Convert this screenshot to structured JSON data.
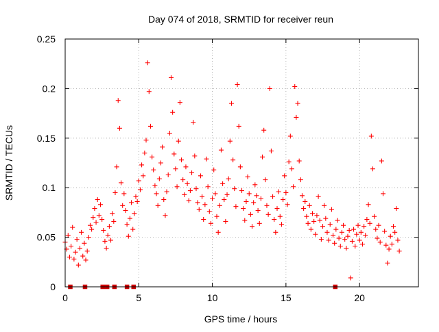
{
  "chart_data": {
    "type": "scatter",
    "title": "Day 074 of 2018, SRMTID for receiver reun",
    "xlabel": "GPS time / hours",
    "ylabel": "SRMTID / TECUs",
    "xlim": [
      0,
      24
    ],
    "ylim": [
      0,
      0.25
    ],
    "xticks": [
      {
        "value": 0,
        "label": "0"
      },
      {
        "value": 5,
        "label": "5"
      },
      {
        "value": 10,
        "label": "10"
      },
      {
        "value": 15,
        "label": "15"
      },
      {
        "value": 20,
        "label": "20"
      }
    ],
    "yticks": [
      {
        "value": 0,
        "label": "0"
      },
      {
        "value": 0.05,
        "label": "0.05"
      },
      {
        "value": 0.1,
        "label": "0.1"
      },
      {
        "value": 0.15,
        "label": "0.15"
      },
      {
        "value": 0.2,
        "label": "0.2"
      },
      {
        "value": 0.25,
        "label": "0.25"
      }
    ],
    "grid": true,
    "marker": "+",
    "color": "#ff0000",
    "zero_marker_color": "#cc0000",
    "zero_markers_x": [
      0.35,
      1.35,
      2.55,
      2.85,
      3.35,
      4.2,
      4.65,
      18.35
    ],
    "series": [
      {
        "name": "SRMTID",
        "points": [
          [
            0.0,
            0.045
          ],
          [
            0.1,
            0.038
          ],
          [
            0.2,
            0.052
          ],
          [
            0.3,
            0.03
          ],
          [
            0.4,
            0.041
          ],
          [
            0.5,
            0.06
          ],
          [
            0.6,
            0.028
          ],
          [
            0.7,
            0.035
          ],
          [
            0.8,
            0.048
          ],
          [
            0.9,
            0.022
          ],
          [
            1.0,
            0.039
          ],
          [
            1.1,
            0.055
          ],
          [
            1.2,
            0.031
          ],
          [
            1.3,
            0.044
          ],
          [
            1.4,
            0.027
          ],
          [
            1.5,
            0.036
          ],
          [
            1.6,
            0.05
          ],
          [
            1.7,
            0.062
          ],
          [
            1.8,
            0.058
          ],
          [
            1.9,
            0.07
          ],
          [
            2.0,
            0.079
          ],
          [
            2.1,
            0.065
          ],
          [
            2.2,
            0.088
          ],
          [
            2.3,
            0.072
          ],
          [
            2.4,
            0.083
          ],
          [
            2.5,
            0.068
          ],
          [
            2.6,
            0.057
          ],
          [
            2.7,
            0.046
          ],
          [
            2.8,
            0.039
          ],
          [
            2.9,
            0.052
          ],
          [
            3.0,
            0.061
          ],
          [
            3.1,
            0.047
          ],
          [
            3.2,
            0.074
          ],
          [
            3.3,
            0.066
          ],
          [
            3.4,
            0.095
          ],
          [
            3.5,
            0.121
          ],
          [
            3.6,
            0.188
          ],
          [
            3.7,
            0.16
          ],
          [
            3.8,
            0.105
          ],
          [
            3.9,
            0.082
          ],
          [
            4.0,
            0.094
          ],
          [
            4.1,
            0.077
          ],
          [
            4.2,
            0.063
          ],
          [
            4.3,
            0.051
          ],
          [
            4.4,
            0.069
          ],
          [
            4.5,
            0.085
          ],
          [
            4.6,
            0.058
          ],
          [
            4.7,
            0.074
          ],
          [
            4.8,
            0.091
          ],
          [
            4.9,
            0.086
          ],
          [
            5.0,
            0.107
          ],
          [
            5.1,
            0.098
          ],
          [
            5.2,
            0.123
          ],
          [
            5.3,
            0.112
          ],
          [
            5.4,
            0.135
          ],
          [
            5.5,
            0.148
          ],
          [
            5.6,
            0.226
          ],
          [
            5.7,
            0.197
          ],
          [
            5.8,
            0.162
          ],
          [
            5.9,
            0.131
          ],
          [
            6.0,
            0.118
          ],
          [
            6.1,
            0.102
          ],
          [
            6.2,
            0.094
          ],
          [
            6.3,
            0.082
          ],
          [
            6.4,
            0.109
          ],
          [
            6.5,
            0.125
          ],
          [
            6.6,
            0.141
          ],
          [
            6.7,
            0.088
          ],
          [
            6.8,
            0.072
          ],
          [
            6.9,
            0.096
          ],
          [
            7.0,
            0.113
          ],
          [
            7.1,
            0.155
          ],
          [
            7.2,
            0.211
          ],
          [
            7.3,
            0.176
          ],
          [
            7.4,
            0.134
          ],
          [
            7.5,
            0.119
          ],
          [
            7.6,
            0.101
          ],
          [
            7.7,
            0.147
          ],
          [
            7.8,
            0.186
          ],
          [
            7.9,
            0.128
          ],
          [
            8.0,
            0.108
          ],
          [
            8.1,
            0.093
          ],
          [
            8.2,
            0.121
          ],
          [
            8.3,
            0.104
          ],
          [
            8.4,
            0.087
          ],
          [
            8.5,
            0.097
          ],
          [
            8.6,
            0.115
          ],
          [
            8.7,
            0.166
          ],
          [
            8.8,
            0.132
          ],
          [
            8.9,
            0.099
          ],
          [
            9.0,
            0.085
          ],
          [
            9.1,
            0.078
          ],
          [
            9.2,
            0.112
          ],
          [
            9.3,
            0.091
          ],
          [
            9.4,
            0.068
          ],
          [
            9.5,
            0.083
          ],
          [
            9.6,
            0.129
          ],
          [
            9.7,
            0.101
          ],
          [
            9.8,
            0.076
          ],
          [
            9.9,
            0.064
          ],
          [
            10.0,
            0.089
          ],
          [
            10.1,
            0.118
          ],
          [
            10.2,
            0.094
          ],
          [
            10.3,
            0.071
          ],
          [
            10.4,
            0.055
          ],
          [
            10.5,
            0.082
          ],
          [
            10.6,
            0.138
          ],
          [
            10.7,
            0.104
          ],
          [
            10.8,
            0.088
          ],
          [
            10.9,
            0.066
          ],
          [
            11.0,
            0.093
          ],
          [
            11.1,
            0.109
          ],
          [
            11.2,
            0.147
          ],
          [
            11.3,
            0.185
          ],
          [
            11.4,
            0.128
          ],
          [
            11.5,
            0.099
          ],
          [
            11.6,
            0.081
          ],
          [
            11.7,
            0.204
          ],
          [
            11.8,
            0.162
          ],
          [
            11.9,
            0.121
          ],
          [
            12.0,
            0.097
          ],
          [
            12.1,
            0.079
          ],
          [
            12.2,
            0.067
          ],
          [
            12.3,
            0.086
          ],
          [
            12.4,
            0.111
          ],
          [
            12.5,
            0.094
          ],
          [
            12.6,
            0.073
          ],
          [
            12.7,
            0.061
          ],
          [
            12.8,
            0.085
          ],
          [
            12.9,
            0.103
          ],
          [
            13.0,
            0.092
          ],
          [
            13.1,
            0.077
          ],
          [
            13.2,
            0.064
          ],
          [
            13.3,
            0.089
          ],
          [
            13.4,
            0.131
          ],
          [
            13.5,
            0.158
          ],
          [
            13.6,
            0.108
          ],
          [
            13.7,
            0.082
          ],
          [
            13.8,
            0.073
          ],
          [
            13.9,
            0.2
          ],
          [
            14.0,
            0.137
          ],
          [
            14.1,
            0.091
          ],
          [
            14.2,
            0.068
          ],
          [
            14.3,
            0.055
          ],
          [
            14.4,
            0.079
          ],
          [
            14.5,
            0.096
          ],
          [
            14.6,
            0.071
          ],
          [
            14.7,
            0.063
          ],
          [
            14.8,
            0.088
          ],
          [
            14.9,
            0.112
          ],
          [
            15.0,
            0.095
          ],
          [
            15.1,
            0.083
          ],
          [
            15.2,
            0.126
          ],
          [
            15.3,
            0.152
          ],
          [
            15.4,
            0.119
          ],
          [
            15.5,
            0.101
          ],
          [
            15.6,
            0.202
          ],
          [
            15.7,
            0.171
          ],
          [
            15.8,
            0.185
          ],
          [
            15.9,
            0.127
          ],
          [
            16.0,
            0.108
          ],
          [
            16.1,
            0.092
          ],
          [
            16.2,
            0.079
          ],
          [
            16.3,
            0.086
          ],
          [
            16.4,
            0.071
          ],
          [
            16.5,
            0.064
          ],
          [
            16.6,
            0.082
          ],
          [
            16.7,
            0.058
          ],
          [
            16.8,
            0.074
          ],
          [
            16.9,
            0.066
          ],
          [
            17.0,
            0.053
          ],
          [
            17.1,
            0.072
          ],
          [
            17.2,
            0.091
          ],
          [
            17.3,
            0.067
          ],
          [
            17.4,
            0.048
          ],
          [
            17.5,
            0.061
          ],
          [
            17.6,
            0.082
          ],
          [
            17.7,
            0.069
          ],
          [
            17.8,
            0.055
          ],
          [
            17.9,
            0.047
          ],
          [
            18.0,
            0.063
          ],
          [
            18.1,
            0.078
          ],
          [
            18.2,
            0.052
          ],
          [
            18.3,
            0.044
          ],
          [
            18.4,
            0.058
          ],
          [
            18.5,
            0.067
          ],
          [
            18.6,
            0.049
          ],
          [
            18.7,
            0.041
          ],
          [
            18.8,
            0.055
          ],
          [
            18.9,
            0.062
          ],
          [
            19.0,
            0.048
          ],
          [
            19.1,
            0.039
          ],
          [
            19.2,
            0.051
          ],
          [
            19.3,
            0.057
          ],
          [
            19.4,
            0.009
          ],
          [
            19.5,
            0.046
          ],
          [
            19.6,
            0.058
          ],
          [
            19.7,
            0.041
          ],
          [
            19.8,
            0.053
          ],
          [
            19.9,
            0.062
          ],
          [
            20.0,
            0.047
          ],
          [
            20.1,
            0.055
          ],
          [
            20.2,
            0.043
          ],
          [
            20.3,
            0.061
          ],
          [
            20.4,
            0.052
          ],
          [
            20.5,
            0.068
          ],
          [
            20.6,
            0.083
          ],
          [
            20.7,
            0.064
          ],
          [
            20.8,
            0.152
          ],
          [
            20.9,
            0.119
          ],
          [
            21.0,
            0.071
          ],
          [
            21.1,
            0.058
          ],
          [
            21.2,
            0.049
          ],
          [
            21.3,
            0.062
          ],
          [
            21.4,
            0.045
          ],
          [
            21.5,
            0.127
          ],
          [
            21.6,
            0.094
          ],
          [
            21.7,
            0.056
          ],
          [
            21.8,
            0.042
          ],
          [
            21.9,
            0.024
          ],
          [
            22.0,
            0.038
          ],
          [
            22.1,
            0.051
          ],
          [
            22.2,
            0.043
          ],
          [
            22.3,
            0.061
          ],
          [
            22.4,
            0.055
          ],
          [
            22.5,
            0.079
          ],
          [
            22.6,
            0.047
          ],
          [
            22.7,
            0.036
          ]
        ]
      }
    ]
  }
}
